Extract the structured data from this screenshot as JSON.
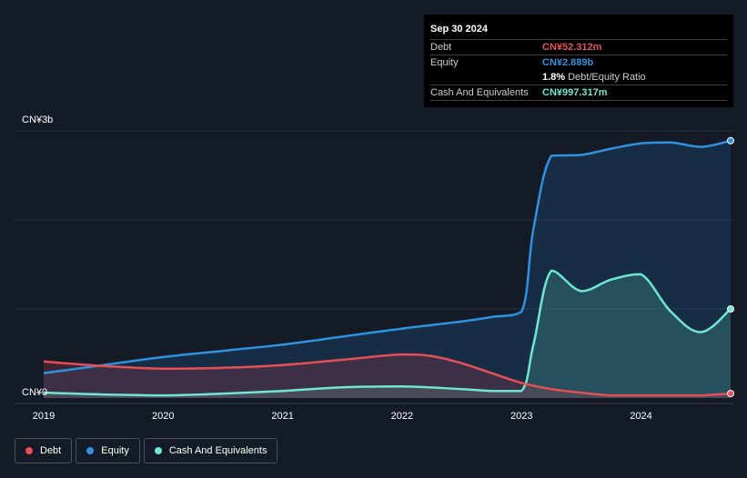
{
  "tooltip": {
    "date": "Sep 30 2024",
    "debt_label": "Debt",
    "debt_value": "CN¥52.312m",
    "equity_label": "Equity",
    "equity_value": "CN¥2.889b",
    "ratio_value": "1.8%",
    "ratio_label": "Debt/Equity Ratio",
    "cash_label": "Cash And Equivalents",
    "cash_value": "CN¥997.317m"
  },
  "legend": {
    "debt": "Debt",
    "equity": "Equity",
    "cash": "Cash And Equivalents"
  },
  "colors": {
    "debt": "#e64f55",
    "equity": "#2f92e0",
    "cash": "#6ee6d2",
    "background": "#151b26"
  },
  "chart_data": {
    "type": "area",
    "y_top_label": "CN¥3b",
    "y_bottom_label": "CN¥0",
    "ylim": [
      0,
      3
    ],
    "x_ticks": [
      "2019",
      "2020",
      "2021",
      "2022",
      "2023",
      "2024"
    ],
    "x_tick_values": [
      2019.0,
      2020.0,
      2021.0,
      2022.0,
      2023.0,
      2024.0
    ],
    "xlim": [
      2019.0,
      2024.75
    ],
    "grid": true,
    "legend_position": "bottom-left",
    "series": [
      {
        "name": "Debt",
        "x": [
          2019.0,
          2019.5,
          2020.0,
          2020.5,
          2021.0,
          2021.5,
          2022.0,
          2022.25,
          2022.5,
          2022.75,
          2023.0,
          2023.25,
          2023.5,
          2023.75,
          2024.0,
          2024.25,
          2024.5,
          2024.75
        ],
        "values": [
          0.41,
          0.36,
          0.33,
          0.34,
          0.37,
          0.43,
          0.49,
          0.47,
          0.39,
          0.28,
          0.17,
          0.1,
          0.06,
          0.03,
          0.03,
          0.03,
          0.03,
          0.05
        ]
      },
      {
        "name": "Equity",
        "x": [
          2019.0,
          2019.5,
          2020.0,
          2020.5,
          2021.0,
          2021.5,
          2022.0,
          2022.5,
          2022.75,
          2023.0,
          2023.1,
          2023.25,
          2023.5,
          2023.75,
          2024.0,
          2024.25,
          2024.5,
          2024.75
        ],
        "values": [
          0.28,
          0.37,
          0.46,
          0.53,
          0.6,
          0.69,
          0.78,
          0.86,
          0.91,
          0.97,
          1.9,
          2.72,
          2.73,
          2.8,
          2.86,
          2.87,
          2.82,
          2.89
        ]
      },
      {
        "name": "Cash And Equivalents",
        "x": [
          2019.0,
          2019.5,
          2020.0,
          2020.5,
          2021.0,
          2021.5,
          2022.0,
          2022.5,
          2022.75,
          2023.0,
          2023.1,
          2023.25,
          2023.5,
          2023.75,
          2024.0,
          2024.25,
          2024.5,
          2024.75
        ],
        "values": [
          0.06,
          0.04,
          0.03,
          0.05,
          0.08,
          0.12,
          0.13,
          0.1,
          0.08,
          0.08,
          0.6,
          1.43,
          1.2,
          1.33,
          1.39,
          0.97,
          0.74,
          1.0
        ]
      }
    ]
  }
}
